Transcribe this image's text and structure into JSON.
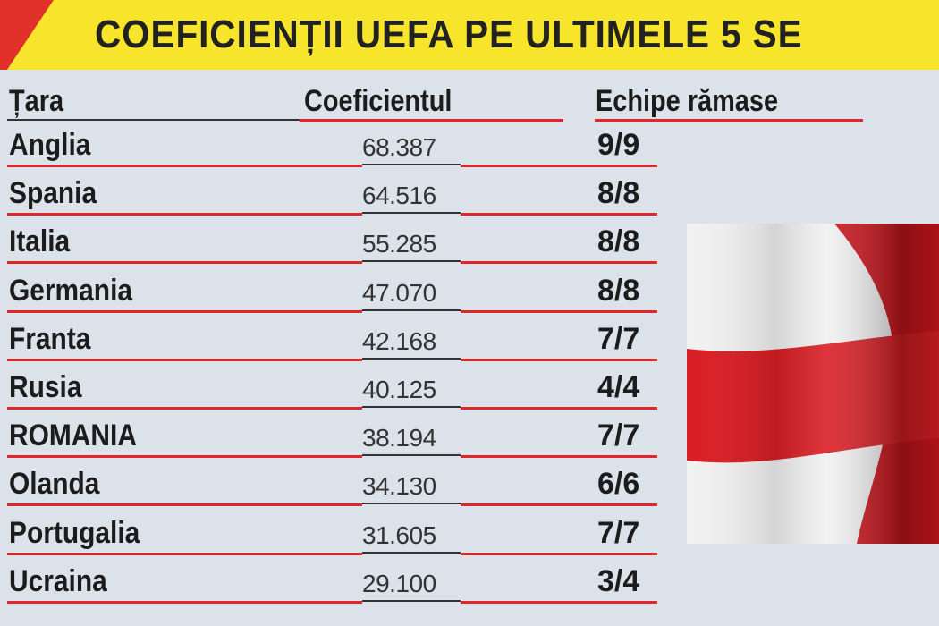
{
  "header": {
    "title": "COEFICIENȚII UEFA PE ULTIMELE 5 SE"
  },
  "table": {
    "columns": [
      "Țara",
      "Coeficientul",
      "Echipe rămase"
    ],
    "rows": [
      [
        "Anglia",
        "68.387",
        "9/9"
      ],
      [
        "Spania",
        "64.516",
        "8/8"
      ],
      [
        "Italia",
        "55.285",
        "8/8"
      ],
      [
        "Germania",
        "47.070",
        "8/8"
      ],
      [
        "Franta",
        "42.168",
        "7/7"
      ],
      [
        "Rusia",
        "40.125",
        "4/4"
      ],
      [
        "ROMANIA",
        "38.194",
        "7/7"
      ],
      [
        "Olanda",
        "34.130",
        "6/6"
      ],
      [
        "Portugalia",
        "31.605",
        "7/7"
      ],
      [
        "Ucraina",
        "29.100",
        "3/4"
      ]
    ]
  }
}
